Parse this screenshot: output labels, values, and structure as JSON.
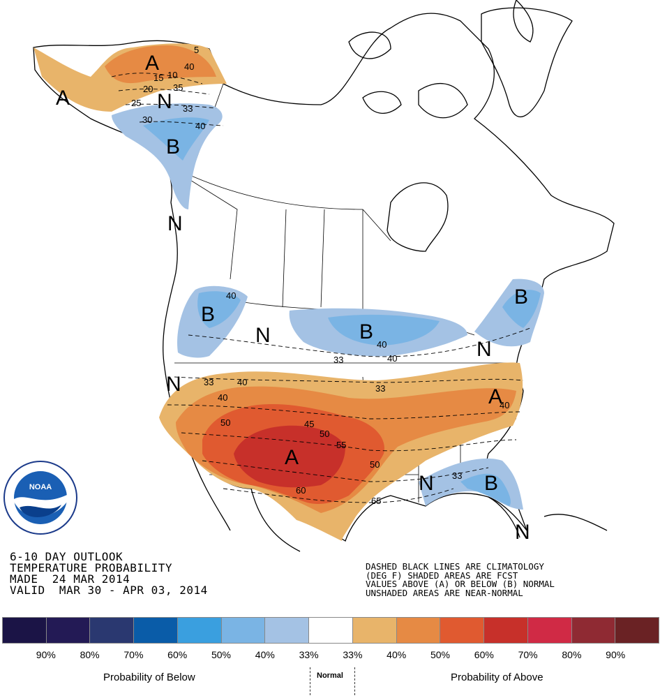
{
  "map": {
    "region_labels": [
      "A",
      "A",
      "N",
      "B",
      "N",
      "B",
      "N",
      "B",
      "B",
      "N",
      "N",
      "A",
      "A",
      "N",
      "B",
      "N"
    ],
    "contour_labels": [
      "5",
      "40",
      "15",
      "10",
      "20",
      "35",
      "25",
      "33",
      "30",
      "40",
      "40",
      "40",
      "40",
      "33",
      "40",
      "33",
      "40",
      "50",
      "45",
      "50",
      "55",
      "50",
      "60",
      "65",
      "33",
      "33",
      "40"
    ]
  },
  "outlook": {
    "line1": "6-10 DAY OUTLOOK",
    "line2": "TEMPERATURE PROBABILITY",
    "line3": "MADE  24 MAR 2014",
    "line4": "VALID  MAR 30 - APR 03, 2014"
  },
  "legend_note": {
    "line1": "DASHED BLACK LINES ARE CLIMATOLOGY",
    "line2": "(DEG F) SHADED AREAS ARE FCST",
    "line3": "VALUES ABOVE (A) OR BELOW (B) NORMAL",
    "line4": "UNSHADED AREAS ARE NEAR-NORMAL"
  },
  "colorbar": {
    "colors": [
      "#1b1446",
      "#231a55",
      "#2a3870",
      "#0a5ca8",
      "#3a9fdf",
      "#7ab4e4",
      "#a4c2e4",
      "#ffffff",
      "#e8b46a",
      "#e68a44",
      "#e05a30",
      "#c7302a",
      "#d02a45",
      "#8f2a33",
      "#6a2224"
    ],
    "labels": [
      "90%",
      "80%",
      "70%",
      "60%",
      "50%",
      "40%",
      "33%",
      "33%",
      "40%",
      "50%",
      "60%",
      "70%",
      "80%",
      "90%"
    ],
    "below_caption": "Probability of Below",
    "normal_caption": "Normal",
    "above_caption": "Probability of Above"
  }
}
